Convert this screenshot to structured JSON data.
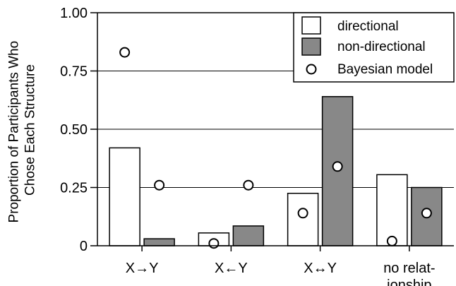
{
  "chart_data": {
    "type": "bar",
    "ylabel_lines": [
      "Proportion of Participants Who",
      "Chose Each Structure"
    ],
    "xlabel": "",
    "ylim": [
      0,
      1
    ],
    "yticks": [
      {
        "value": 0,
        "label": "0"
      },
      {
        "value": 0.25,
        "label": "0.25"
      },
      {
        "value": 0.5,
        "label": "0.50"
      },
      {
        "value": 0.75,
        "label": "0.75"
      },
      {
        "value": 1.0,
        "label": "1.00"
      }
    ],
    "grid": "horizontal",
    "legend_position": "top-right",
    "categories": [
      {
        "lines": [
          "X→Y"
        ]
      },
      {
        "lines": [
          "X←Y"
        ]
      },
      {
        "lines": [
          "X↔Y"
        ]
      },
      {
        "lines": [
          "no relat-",
          "ionship"
        ]
      }
    ],
    "series": [
      {
        "name": "directional",
        "kind": "bar",
        "color": "#ffffff",
        "values": [
          0.42,
          0.055,
          0.225,
          0.305
        ]
      },
      {
        "name": "non-directional",
        "kind": "bar",
        "color": "#888888",
        "values": [
          0.03,
          0.085,
          0.64,
          0.25
        ]
      },
      {
        "name": "Bayesian model",
        "kind": "marker",
        "marker": "open-circle",
        "directional": [
          0.83,
          0.01,
          0.14,
          0.02
        ],
        "non_directional": [
          0.26,
          0.26,
          0.34,
          0.14
        ]
      }
    ]
  }
}
